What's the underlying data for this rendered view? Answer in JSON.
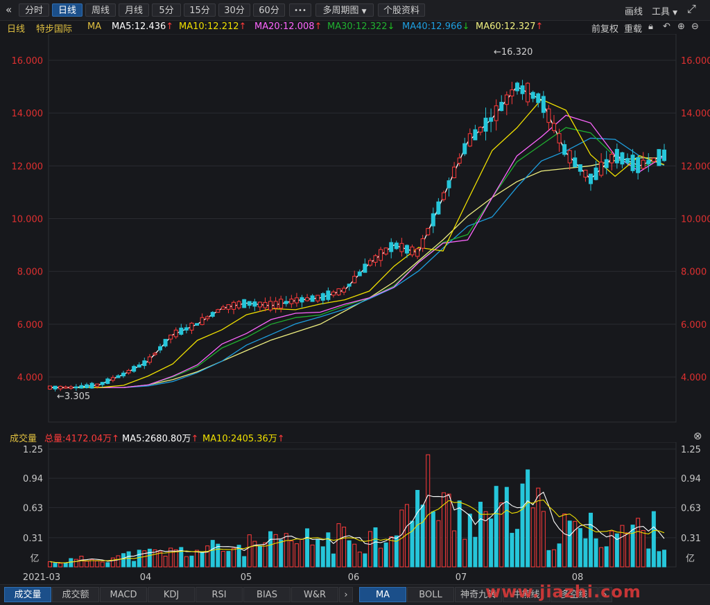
{
  "toolbar": {
    "back_icon": "«",
    "periods": [
      "分时",
      "日线",
      "周线",
      "月线",
      "5分",
      "15分",
      "30分",
      "60分"
    ],
    "active_period": "日线",
    "more": "•••",
    "multi_period": "多周期图",
    "stock_info": "个股资料",
    "draw": "画线",
    "tools": "工具",
    "colors": {
      "active": "#1b4f8a"
    }
  },
  "ma_bar": {
    "period": "日线",
    "stock_name": "特步国际",
    "ma_label": "MA",
    "items": [
      {
        "label": "MA5:12.436",
        "dir": "up",
        "color": "#ffffff"
      },
      {
        "label": "MA10:12.212",
        "dir": "up",
        "color": "#f0e000"
      },
      {
        "label": "MA20:12.008",
        "dir": "up",
        "color": "#ff66ff"
      },
      {
        "label": "MA30:12.322",
        "dir": "down",
        "color": "#20b030"
      },
      {
        "label": "MA40:12.966",
        "dir": "down",
        "color": "#1e9fe0"
      },
      {
        "label": "MA60:12.327",
        "dir": "up",
        "color": "#f0f080"
      }
    ],
    "adjust": "前复权",
    "reset": "重载"
  },
  "price_axis": {
    "ticks": [
      "16.000",
      "14.000",
      "12.000",
      "10.000",
      "8.000",
      "6.000",
      "4.000"
    ]
  },
  "annotations": {
    "high": "16.320",
    "low": "3.305"
  },
  "volume_header": {
    "title": "成交量",
    "total": "总量:4172.04万",
    "ma5": "MA5:2680.80万",
    "ma10": "MA10:2405.36万"
  },
  "volume_axis": {
    "ticks": [
      "1.25",
      "0.94",
      "0.63",
      "0.31"
    ],
    "unit": "亿"
  },
  "date_axis": [
    "2021-03",
    "04",
    "05",
    "06",
    "07",
    "08"
  ],
  "bottom_tabs_left": [
    "成交量",
    "成交额",
    "MACD",
    "KDJ",
    "RSI",
    "BIAS",
    "W&R"
  ],
  "bottom_tabs_right": [
    "MA",
    "BOLL",
    "神奇九转",
    "牛熊线",
    "多空线"
  ],
  "watermark": "www.jiazhi.com",
  "chart_data": {
    "type": "candlestick",
    "title": "",
    "price_range": [
      3.0,
      17.0
    ],
    "x_range": [
      "2021-03",
      "2021-08"
    ],
    "ma_close_samples": {
      "MA5": [
        3.6,
        3.6,
        3.7,
        4.1,
        4.6,
        5.6,
        6.0,
        6.6,
        6.8,
        6.7,
        6.9,
        7.0,
        7.3,
        8.3,
        9.0,
        8.7,
        10.8,
        12.9,
        13.8,
        15.0,
        14.5,
        12.5,
        11.5,
        12.4,
        12.0,
        12.4
      ],
      "MA60": [
        3.6,
        3.6,
        3.6,
        3.6,
        3.7,
        3.9,
        4.2,
        4.6,
        5.0,
        5.4,
        5.7,
        6.0,
        6.5,
        7.0,
        7.6,
        8.4,
        9.2,
        10.1,
        10.8,
        11.4,
        11.8,
        11.9,
        12.0,
        12.2,
        12.3,
        12.3
      ]
    },
    "volume_range": [
      0,
      1.25
    ],
    "volume_unit": "亿"
  }
}
